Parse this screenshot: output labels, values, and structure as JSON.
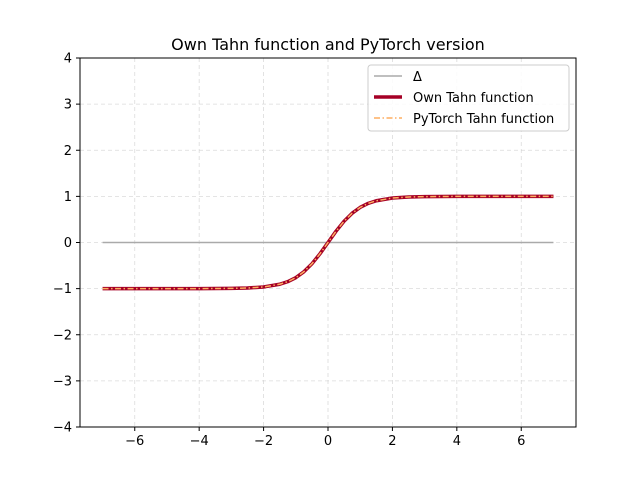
{
  "chart_data": {
    "type": "line",
    "title": "Own Tahn function and PyTorch version",
    "xlabel": "",
    "ylabel": "",
    "xlim": [
      -7.7,
      7.7
    ],
    "ylim": [
      -4,
      4
    ],
    "xticks": [
      -6,
      -4,
      -2,
      0,
      2,
      4,
      6
    ],
    "yticks": [
      -4,
      -3,
      -2,
      -1,
      0,
      1,
      2,
      3,
      4
    ],
    "xtick_labels": [
      "−6",
      "−4",
      "−2",
      "0",
      "2",
      "4",
      "6"
    ],
    "ytick_labels": [
      "−4",
      "−3",
      "−2",
      "−1",
      "0",
      "1",
      "2",
      "3",
      "4"
    ],
    "grid": true,
    "legend_position": "top-right",
    "x": [
      -7,
      -6,
      -5,
      -4,
      -3,
      -2.5,
      -2,
      -1.5,
      -1.25,
      -1,
      -0.75,
      -0.5,
      -0.25,
      0,
      0.25,
      0.5,
      0.75,
      1,
      1.25,
      1.5,
      2,
      2.5,
      3,
      4,
      5,
      6,
      7
    ],
    "series": [
      {
        "name": "Δ",
        "color": "#aaaaaa",
        "style": "solid",
        "values": [
          0,
          0,
          0,
          0,
          0,
          0,
          0,
          0,
          0,
          0,
          0,
          0,
          0,
          0,
          0,
          0,
          0,
          0,
          0,
          0,
          0,
          0,
          0,
          0,
          0,
          0,
          0
        ]
      },
      {
        "name": "Own Tahn function",
        "color": "#a50026",
        "style": "solid-thick",
        "values": [
          -1.0,
          -1.0,
          -0.9999,
          -0.9993,
          -0.9951,
          -0.9866,
          -0.964,
          -0.9051,
          -0.8483,
          -0.7616,
          -0.6351,
          -0.4621,
          -0.2449,
          0,
          0.2449,
          0.4621,
          0.6351,
          0.7616,
          0.8483,
          0.9051,
          0.964,
          0.9866,
          0.9951,
          0.9993,
          0.9999,
          1.0,
          1.0
        ]
      },
      {
        "name": "PyTorch Tahn function",
        "color": "#fdae61",
        "style": "dash-dot",
        "values": [
          -1.0,
          -1.0,
          -0.9999,
          -0.9993,
          -0.9951,
          -0.9866,
          -0.964,
          -0.9051,
          -0.8483,
          -0.7616,
          -0.6351,
          -0.4621,
          -0.2449,
          0,
          0.2449,
          0.4621,
          0.6351,
          0.7616,
          0.8483,
          0.9051,
          0.964,
          0.9866,
          0.9951,
          0.9993,
          0.9999,
          1.0,
          1.0
        ]
      }
    ]
  }
}
